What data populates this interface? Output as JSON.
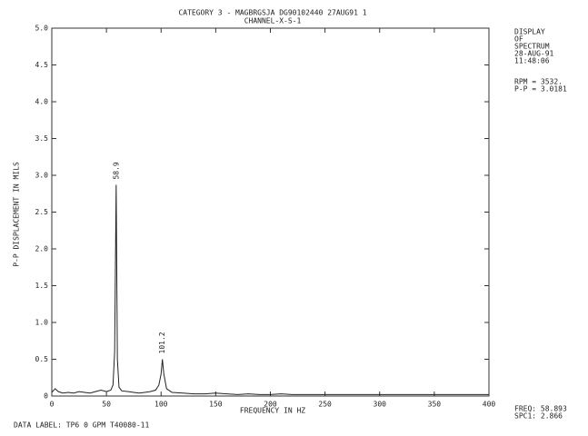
{
  "chart_data": {
    "type": "line",
    "title": "CATEGORY  3 - MAGBRGSJA DG90102440 27AUG91 1",
    "subtitle": "CHANNEL-X-S-1",
    "x_label": "FREQUENCY IN HZ",
    "y_label": "P-P DISPLACEMENT IN MILS",
    "x": [
      0,
      3,
      6,
      10,
      15,
      20,
      25,
      30,
      35,
      40,
      45,
      50,
      54,
      56,
      57.5,
      58.9,
      60,
      61.5,
      64,
      70,
      75,
      80,
      85,
      90,
      95,
      98,
      100,
      101.2,
      102.5,
      105,
      110,
      120,
      130,
      140,
      150,
      160,
      170,
      180,
      190,
      200,
      210,
      220,
      230,
      240,
      250,
      260,
      270,
      280,
      290,
      300,
      310,
      320,
      330,
      340,
      350,
      360,
      370,
      380,
      390,
      400
    ],
    "series": [
      {
        "name": "spectrum",
        "color": "#222222",
        "values": [
          0.05,
          0.1,
          0.06,
          0.04,
          0.05,
          0.04,
          0.06,
          0.05,
          0.04,
          0.06,
          0.08,
          0.06,
          0.08,
          0.15,
          0.6,
          2.87,
          0.5,
          0.12,
          0.07,
          0.06,
          0.05,
          0.04,
          0.05,
          0.06,
          0.08,
          0.15,
          0.3,
          0.5,
          0.3,
          0.1,
          0.05,
          0.04,
          0.03,
          0.03,
          0.04,
          0.03,
          0.02,
          0.03,
          0.02,
          0.02,
          0.03,
          0.02,
          0.02,
          0.02,
          0.02,
          0.02,
          0.02,
          0.02,
          0.02,
          0.02,
          0.02,
          0.02,
          0.02,
          0.02,
          0.02,
          0.02,
          0.02,
          0.02,
          0.02,
          0.02
        ]
      }
    ],
    "peak_labels": [
      "58.9",
      "101.2"
    ],
    "xlim": [
      0,
      400
    ],
    "xticks": [
      0,
      50,
      100,
      150,
      200,
      250,
      300,
      350,
      400
    ],
    "ylim": [
      0,
      5
    ],
    "yticks": [
      0,
      0.5,
      {
        "value": 1,
        "label": "1.0"
      },
      1.5,
      {
        "value": 2,
        "label": "2.0"
      },
      2.5,
      {
        "value": 3,
        "label": "3.0"
      },
      3.5,
      {
        "value": 4,
        "label": "4.0"
      },
      4.5,
      {
        "value": 5,
        "label": "5.0"
      }
    ],
    "side_notes": [
      "DISPLAY",
      "OF",
      "SPECTRUM",
      "28-AUG-91",
      "11:48:06"
    ],
    "side_values": [
      "RPM = 3532.",
      "P-P =   3.0181"
    ],
    "cursor_notes": [
      "FREQ: 58.893",
      "SPC1:  2.866"
    ],
    "data_label": "DATA LABEL:  TP6  0 GPM  T40080-11"
  }
}
